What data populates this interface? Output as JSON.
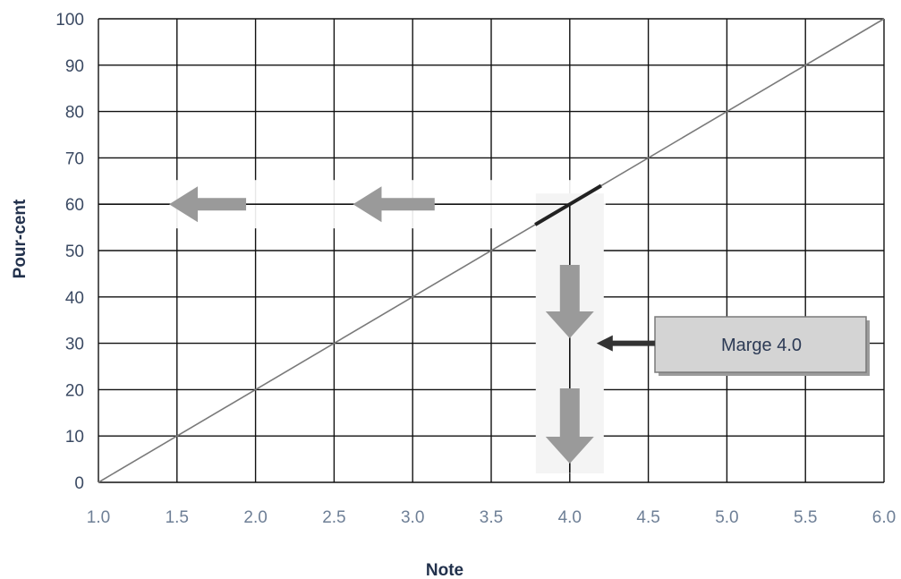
{
  "chart_data": {
    "type": "line",
    "xlabel": "Note",
    "ylabel": "Pour-cent",
    "xlim": [
      1.0,
      6.0
    ],
    "ylim": [
      0,
      100
    ],
    "x_ticks": [
      "1.0",
      "1.5",
      "2.0",
      "2.5",
      "3.0",
      "3.5",
      "4.0",
      "4.5",
      "5.0",
      "5.5",
      "6.0"
    ],
    "y_ticks": [
      "0",
      "10",
      "20",
      "30",
      "40",
      "50",
      "60",
      "70",
      "80",
      "90",
      "100"
    ],
    "grid": true,
    "series": [
      {
        "x": [
          1.0,
          6.0
        ],
        "y": [
          0,
          100
        ]
      }
    ],
    "guide": {
      "note": 4.0,
      "percent": 60
    },
    "annotation": {
      "text": "Marge 4.0",
      "points_to": {
        "x": 4.0,
        "y": 30
      }
    },
    "colors": {
      "line": "#7a7a7a",
      "grid": "#111111",
      "arrow": "#9a9a9a",
      "callout_fill": "#d4d4d4",
      "pointer": "#333333"
    }
  }
}
